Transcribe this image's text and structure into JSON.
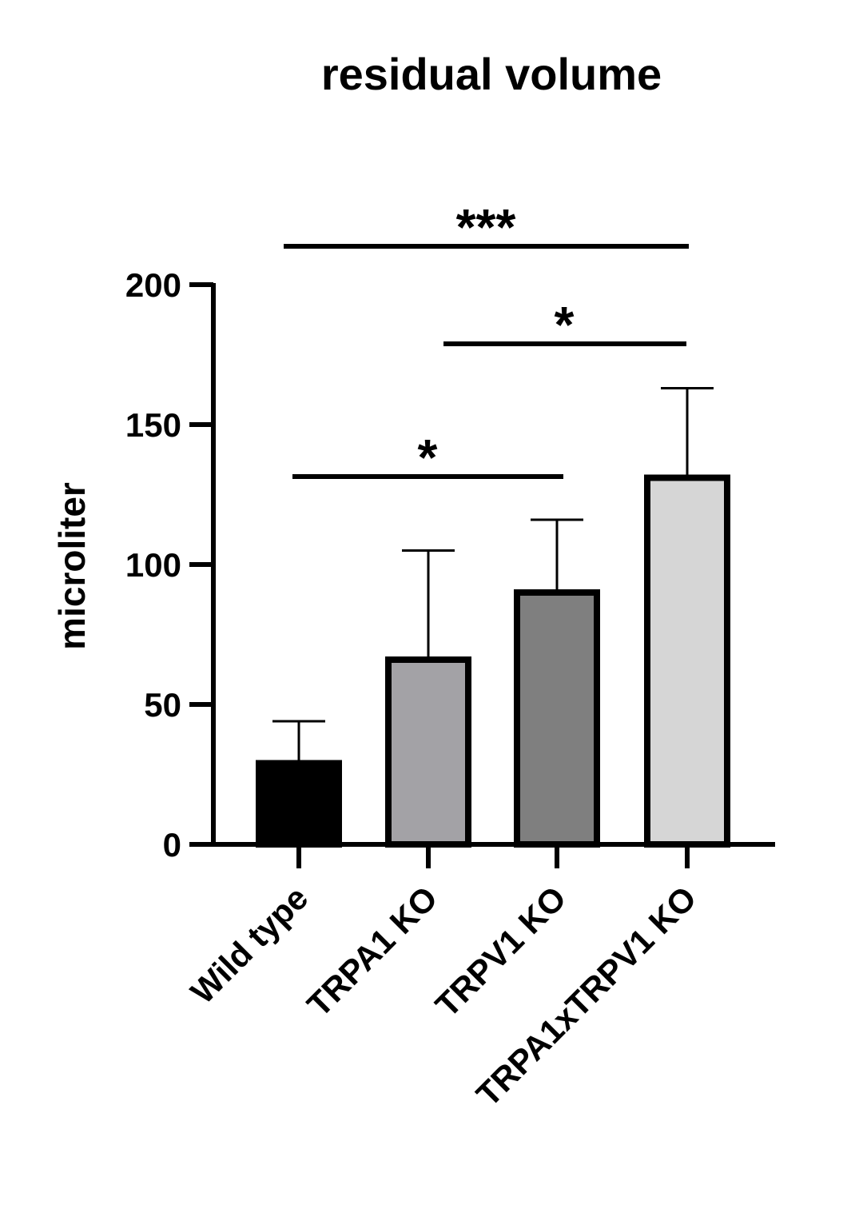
{
  "chart_data": {
    "type": "bar",
    "title": "residual volume",
    "xlabel": "",
    "ylabel": "microliter",
    "ylim": [
      0,
      200
    ],
    "yticks": [
      0,
      50,
      100,
      150,
      200
    ],
    "categories": [
      "Wild type",
      "TRPA1 KO",
      "TRPV1 KO",
      "TRPA1xTRPV1 KO"
    ],
    "values": [
      29,
      66,
      90,
      131
    ],
    "errors": [
      15,
      39,
      26,
      32
    ],
    "bar_colors": [
      "#000000",
      "#a3a2a6",
      "#7f7f7f",
      "#d6d6d6"
    ],
    "grid": false,
    "significance": [
      {
        "from": 0,
        "to": 3,
        "label": "***"
      },
      {
        "from": 1,
        "to": 3,
        "label": "*"
      },
      {
        "from": 0,
        "to": 2,
        "label": "*"
      }
    ]
  }
}
